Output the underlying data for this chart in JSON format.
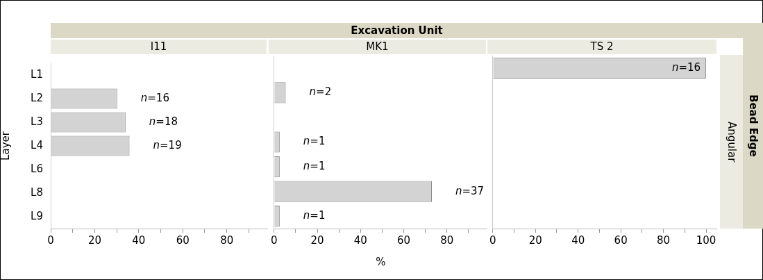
{
  "chart_data": [
    {
      "type": "bar",
      "orientation": "horizontal",
      "title": "I11",
      "ylabel": "Layer",
      "annotations": [
        "Excavation Unit",
        {
          "text": "n=16",
          "x": 30.2,
          "y": "L2"
        },
        {
          "text": "n=18",
          "x": 34.0,
          "y": "L3"
        },
        {
          "text": "n=19",
          "x": 35.8,
          "y": "L4"
        }
      ],
      "categories": [
        "L1",
        "L2",
        "L3",
        "L4",
        "L6",
        "L8",
        "L9"
      ],
      "values": [
        null,
        30.2,
        34.0,
        35.8,
        null,
        null,
        null
      ],
      "color": "#d3d3d3",
      "xlim": [
        0,
        98.7
      ],
      "xticks": [
        0,
        {
          "value": 10,
          "label": null
        },
        20,
        {
          "value": 30,
          "label": null
        },
        40,
        {
          "value": 50,
          "label": null
        },
        60,
        {
          "value": 70,
          "label": null
        },
        80,
        {
          "value": 90,
          "label": null
        }
      ]
    },
    {
      "type": "bar",
      "orientation": "horizontal",
      "title": "MK1",
      "xlabel": "%",
      "tick_labels": "x",
      "annotations": [
        {
          "text": "n=2",
          "x": 5.4,
          "y": "L2"
        },
        {
          "text": "n=1",
          "x": 2.6,
          "y": "L4"
        },
        {
          "text": "n=1",
          "x": 2.6,
          "y": "L6"
        },
        {
          "text": "n=37",
          "x": 73,
          "y": "L8"
        },
        {
          "text": "n=1",
          "x": 2.6,
          "y": "L9"
        }
      ],
      "categories": [
        "L1",
        "L2",
        "L3",
        "L4",
        "L6",
        "L8",
        "L9"
      ],
      "values": [
        null,
        5.4,
        null,
        2.6,
        2.6,
        73,
        2.6
      ],
      "color": "#d3d3d3",
      "xlim": [
        0,
        98.7
      ],
      "xticks": [
        0,
        {
          "value": 10,
          "label": null
        },
        20,
        {
          "value": 30,
          "label": null
        },
        40,
        {
          "value": 50,
          "label": null
        },
        60,
        {
          "value": 70,
          "label": null
        },
        80,
        {
          "value": 90,
          "label": null
        }
      ]
    },
    {
      "type": "bar",
      "orientation": "horizontal",
      "title": "TS 2",
      "tick_labels": "x",
      "annotations": [
        "Bead Edge",
        "Angular",
        {
          "text": "n=16",
          "x": 100,
          "y": "L1"
        }
      ],
      "categories": [
        "L1",
        "L2",
        "L3",
        "L4",
        "L6",
        "L8",
        "L9"
      ],
      "values": [
        100,
        null,
        null,
        null,
        null,
        null,
        null
      ],
      "color": "#d3d3d3",
      "xlim": [
        0,
        105
      ],
      "xticks": [
        0,
        {
          "value": 10,
          "label": null
        },
        20,
        {
          "value": 30,
          "label": null
        },
        40,
        {
          "value": 50,
          "label": null
        },
        60,
        {
          "value": 70,
          "label": null
        },
        80,
        {
          "value": 90,
          "label": null
        },
        100
      ]
    }
  ]
}
